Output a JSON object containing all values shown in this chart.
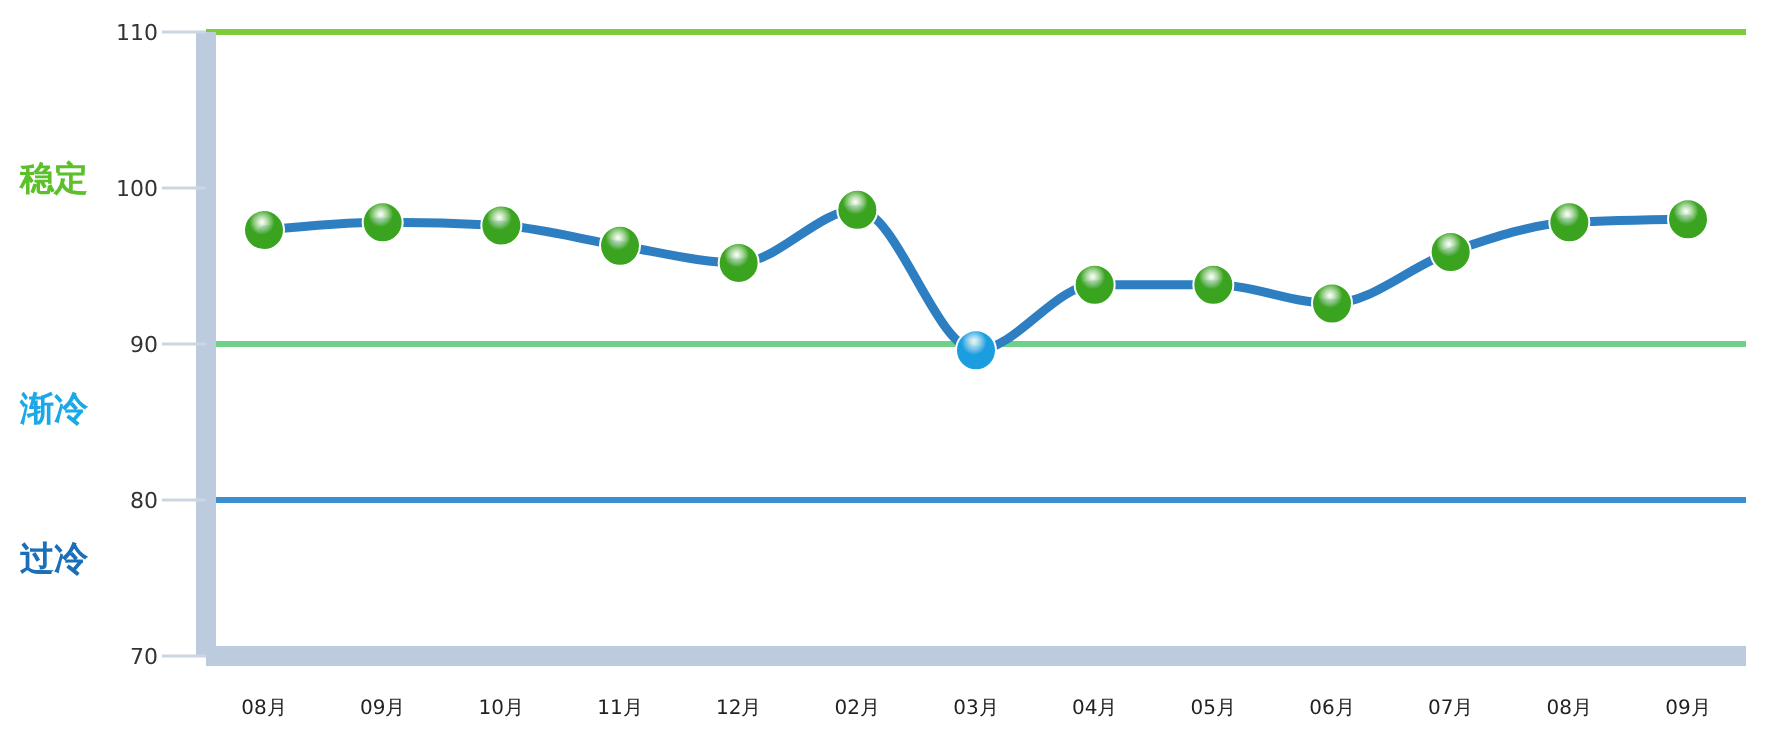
{
  "chart_data": {
    "type": "line",
    "categories": [
      "08月",
      "09月",
      "10月",
      "11月",
      "12月",
      "02月",
      "03月",
      "04月",
      "05月",
      "06月",
      "07月",
      "08月",
      "09月"
    ],
    "series": [
      {
        "color": "#2e7fc2",
        "colors": [
          "#3aa320",
          "#3aa320",
          "#3aa320",
          "#3aa320",
          "#3aa320",
          "#3aa320",
          "#1a9ee0",
          "#3aa320",
          "#3aa320",
          "#3aa320",
          "#3aa320",
          "#3aa320",
          "#3aa320"
        ],
        "values": [
          97.3,
          97.8,
          97.6,
          96.3,
          95.2,
          98.6,
          89.6,
          93.8,
          93.8,
          92.6,
          95.9,
          97.8,
          98.0
        ]
      }
    ],
    "ylim": [
      70,
      110
    ],
    "yticks": [
      70,
      80,
      90,
      100,
      110
    ],
    "ref_lines": [
      {
        "axis": "y",
        "value": 110,
        "color": "#7ccc3a"
      },
      {
        "axis": "y",
        "value": 90,
        "color": "#6fd08a"
      },
      {
        "axis": "y",
        "value": 80,
        "color": "#3a8fd0"
      }
    ],
    "annotations": [
      "稳定",
      "渐冷",
      "过冷"
    ],
    "grid": false,
    "legend": false,
    "marker": "circle",
    "line_style": "solid"
  }
}
